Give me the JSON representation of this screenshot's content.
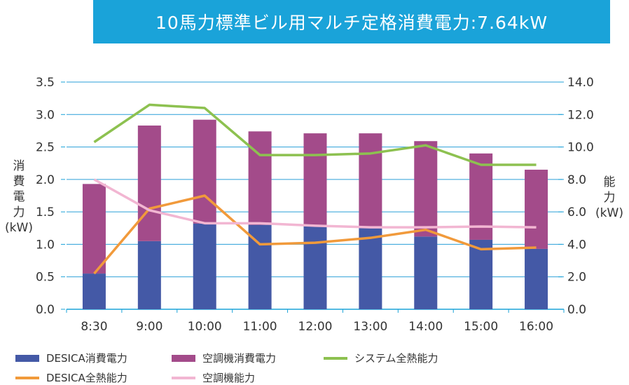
{
  "title": "10馬力標準ビル用マルチ定格消費電力:7.64kW",
  "chart_data": {
    "type": "bar",
    "categories": [
      "8:30",
      "9:00",
      "10:00",
      "11:00",
      "12:00",
      "13:00",
      "14:00",
      "15:00",
      "16:00"
    ],
    "left_axis": {
      "label": "消費電力(kW)",
      "label_lines": [
        "消",
        "費",
        "電",
        "力",
        "(kW)"
      ],
      "ylim": [
        0,
        3.5
      ],
      "ticks": [
        "0.0",
        "0.5",
        "1.0",
        "1.5",
        "2.0",
        "2.5",
        "3.0",
        "3.5"
      ]
    },
    "right_axis": {
      "label": "能力(kW)",
      "label_lines": [
        "能",
        "力",
        "(kW)"
      ],
      "ylim": [
        0,
        14
      ],
      "ticks": [
        "0.0",
        "2.0",
        "4.0",
        "6.0",
        "8.0",
        "10.0",
        "12.0",
        "14.0"
      ]
    },
    "stacked_bars": [
      {
        "name": "DESICA消費電力",
        "color": "#4459a6",
        "axis": "left",
        "values": [
          0.55,
          1.05,
          1.32,
          1.3,
          1.28,
          1.27,
          1.12,
          1.07,
          0.93
        ]
      },
      {
        "name": "空調機消費電力",
        "color": "#a34b8a",
        "axis": "left",
        "values": [
          1.38,
          1.78,
          1.6,
          1.44,
          1.43,
          1.44,
          1.47,
          1.33,
          1.22
        ]
      }
    ],
    "lines": [
      {
        "name": "システム全熱能力",
        "color": "#8dc150",
        "axis": "right",
        "values": [
          10.3,
          12.6,
          12.4,
          9.5,
          9.5,
          9.6,
          10.1,
          8.9,
          8.9
        ]
      },
      {
        "name": "DESICA全熱能力",
        "color": "#f19a3b",
        "axis": "right",
        "values": [
          2.2,
          6.2,
          7.0,
          4.0,
          4.1,
          4.4,
          4.9,
          3.7,
          3.8
        ]
      },
      {
        "name": "空調機能力",
        "color": "#f2b6d2",
        "axis": "right",
        "values": [
          8.0,
          6.1,
          5.3,
          5.3,
          5.15,
          5.05,
          5.05,
          5.1,
          5.05
        ]
      }
    ],
    "grid": true,
    "legend_position": "bottom"
  }
}
